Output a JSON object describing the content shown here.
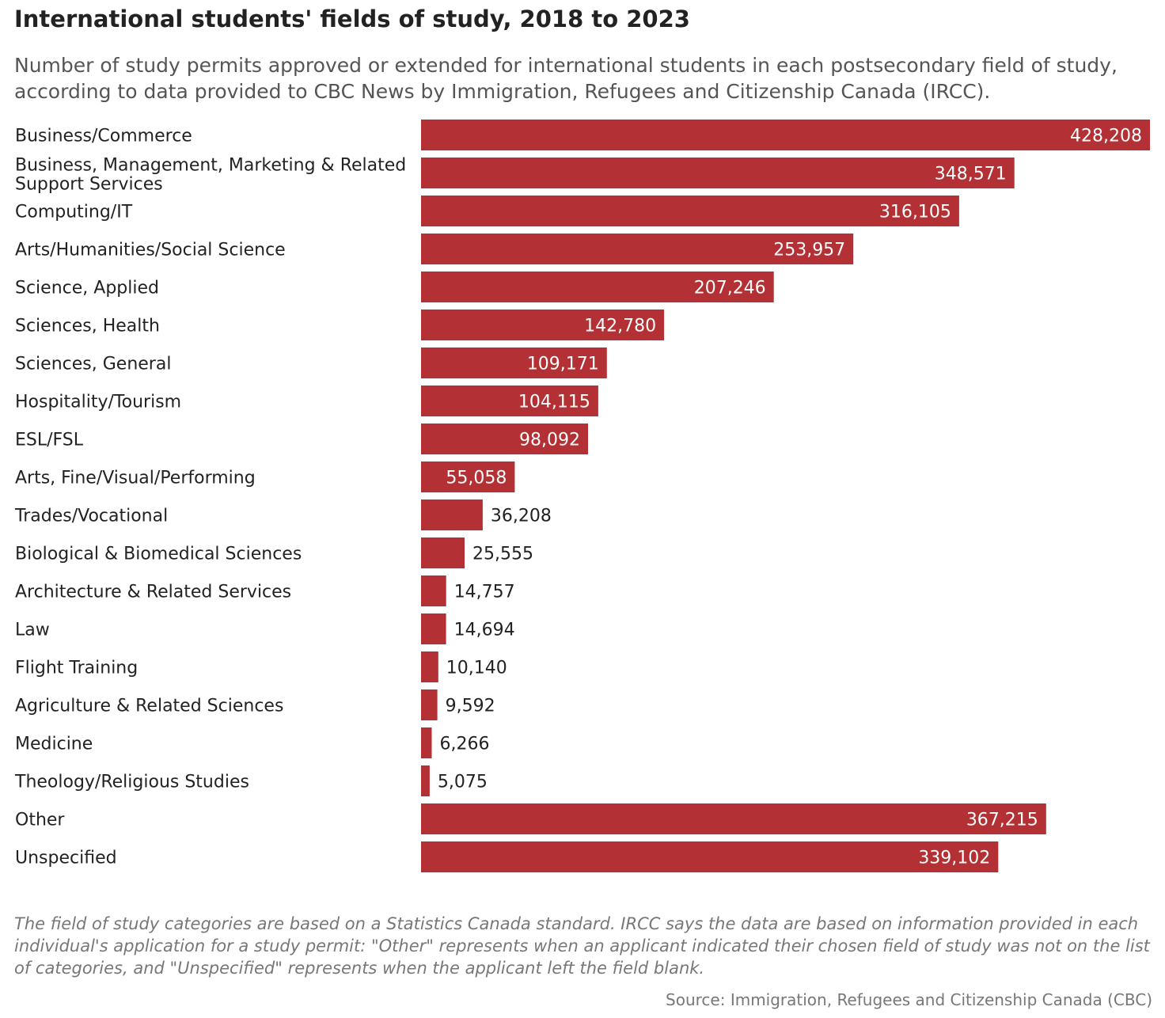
{
  "title": "International students' fields of study, 2018 to 2023",
  "subtitle": "Number of study permits approved or extended for international students in each postsecondary field of study, according to data provided to CBC News by Immigration, Refugees and Citizenship Canada (IRCC).",
  "note": "The field of study categories are based on a Statistics Canada standard. IRCC says the data are based on information provided in each individual's application for a study permit: \"Other\" represents when an applicant indicated their chosen field of study was not on the list of categories, and \"Unspecified\" represents when the applicant left the field blank.",
  "source": "Source: Immigration, Refugees and Citizenship Canada (CBC)",
  "colors": {
    "bar": "#b33034",
    "label_inside": "#ffffff",
    "label_outside": "#222222"
  },
  "chart_data": {
    "type": "bar",
    "orientation": "horizontal",
    "categories": [
      "Business/Commerce",
      "Business, Management, Marketing & Related Support Services",
      "Computing/IT",
      "Arts/Humanities/Social Science",
      "Science, Applied",
      "Sciences, Health",
      "Sciences, General",
      "Hospitality/Tourism",
      "ESL/FSL",
      "Arts, Fine/Visual/Performing",
      "Trades/Vocational",
      "Biological & Biomedical Sciences",
      "Architecture & Related Services",
      "Law",
      "Flight Training",
      "Agriculture & Related Sciences",
      "Medicine",
      "Theology/Religious Studies",
      "Other",
      "Unspecified"
    ],
    "values": [
      428208,
      348571,
      316105,
      253957,
      207246,
      142780,
      109171,
      104115,
      98092,
      55058,
      36208,
      25555,
      14757,
      14694,
      10140,
      9592,
      6266,
      5075,
      367215,
      339102
    ],
    "value_labels": [
      "428,208",
      "348,571",
      "316,105",
      "253,957",
      "207,246",
      "142,780",
      "109,171",
      "104,115",
      "98,092",
      "55,058",
      "36,208",
      "25,555",
      "14,757",
      "14,694",
      "10,140",
      "9,592",
      "6,266",
      "5,075",
      "367,215",
      "339,102"
    ],
    "xlim": [
      0,
      428208
    ],
    "grid": false,
    "legend": "none"
  }
}
